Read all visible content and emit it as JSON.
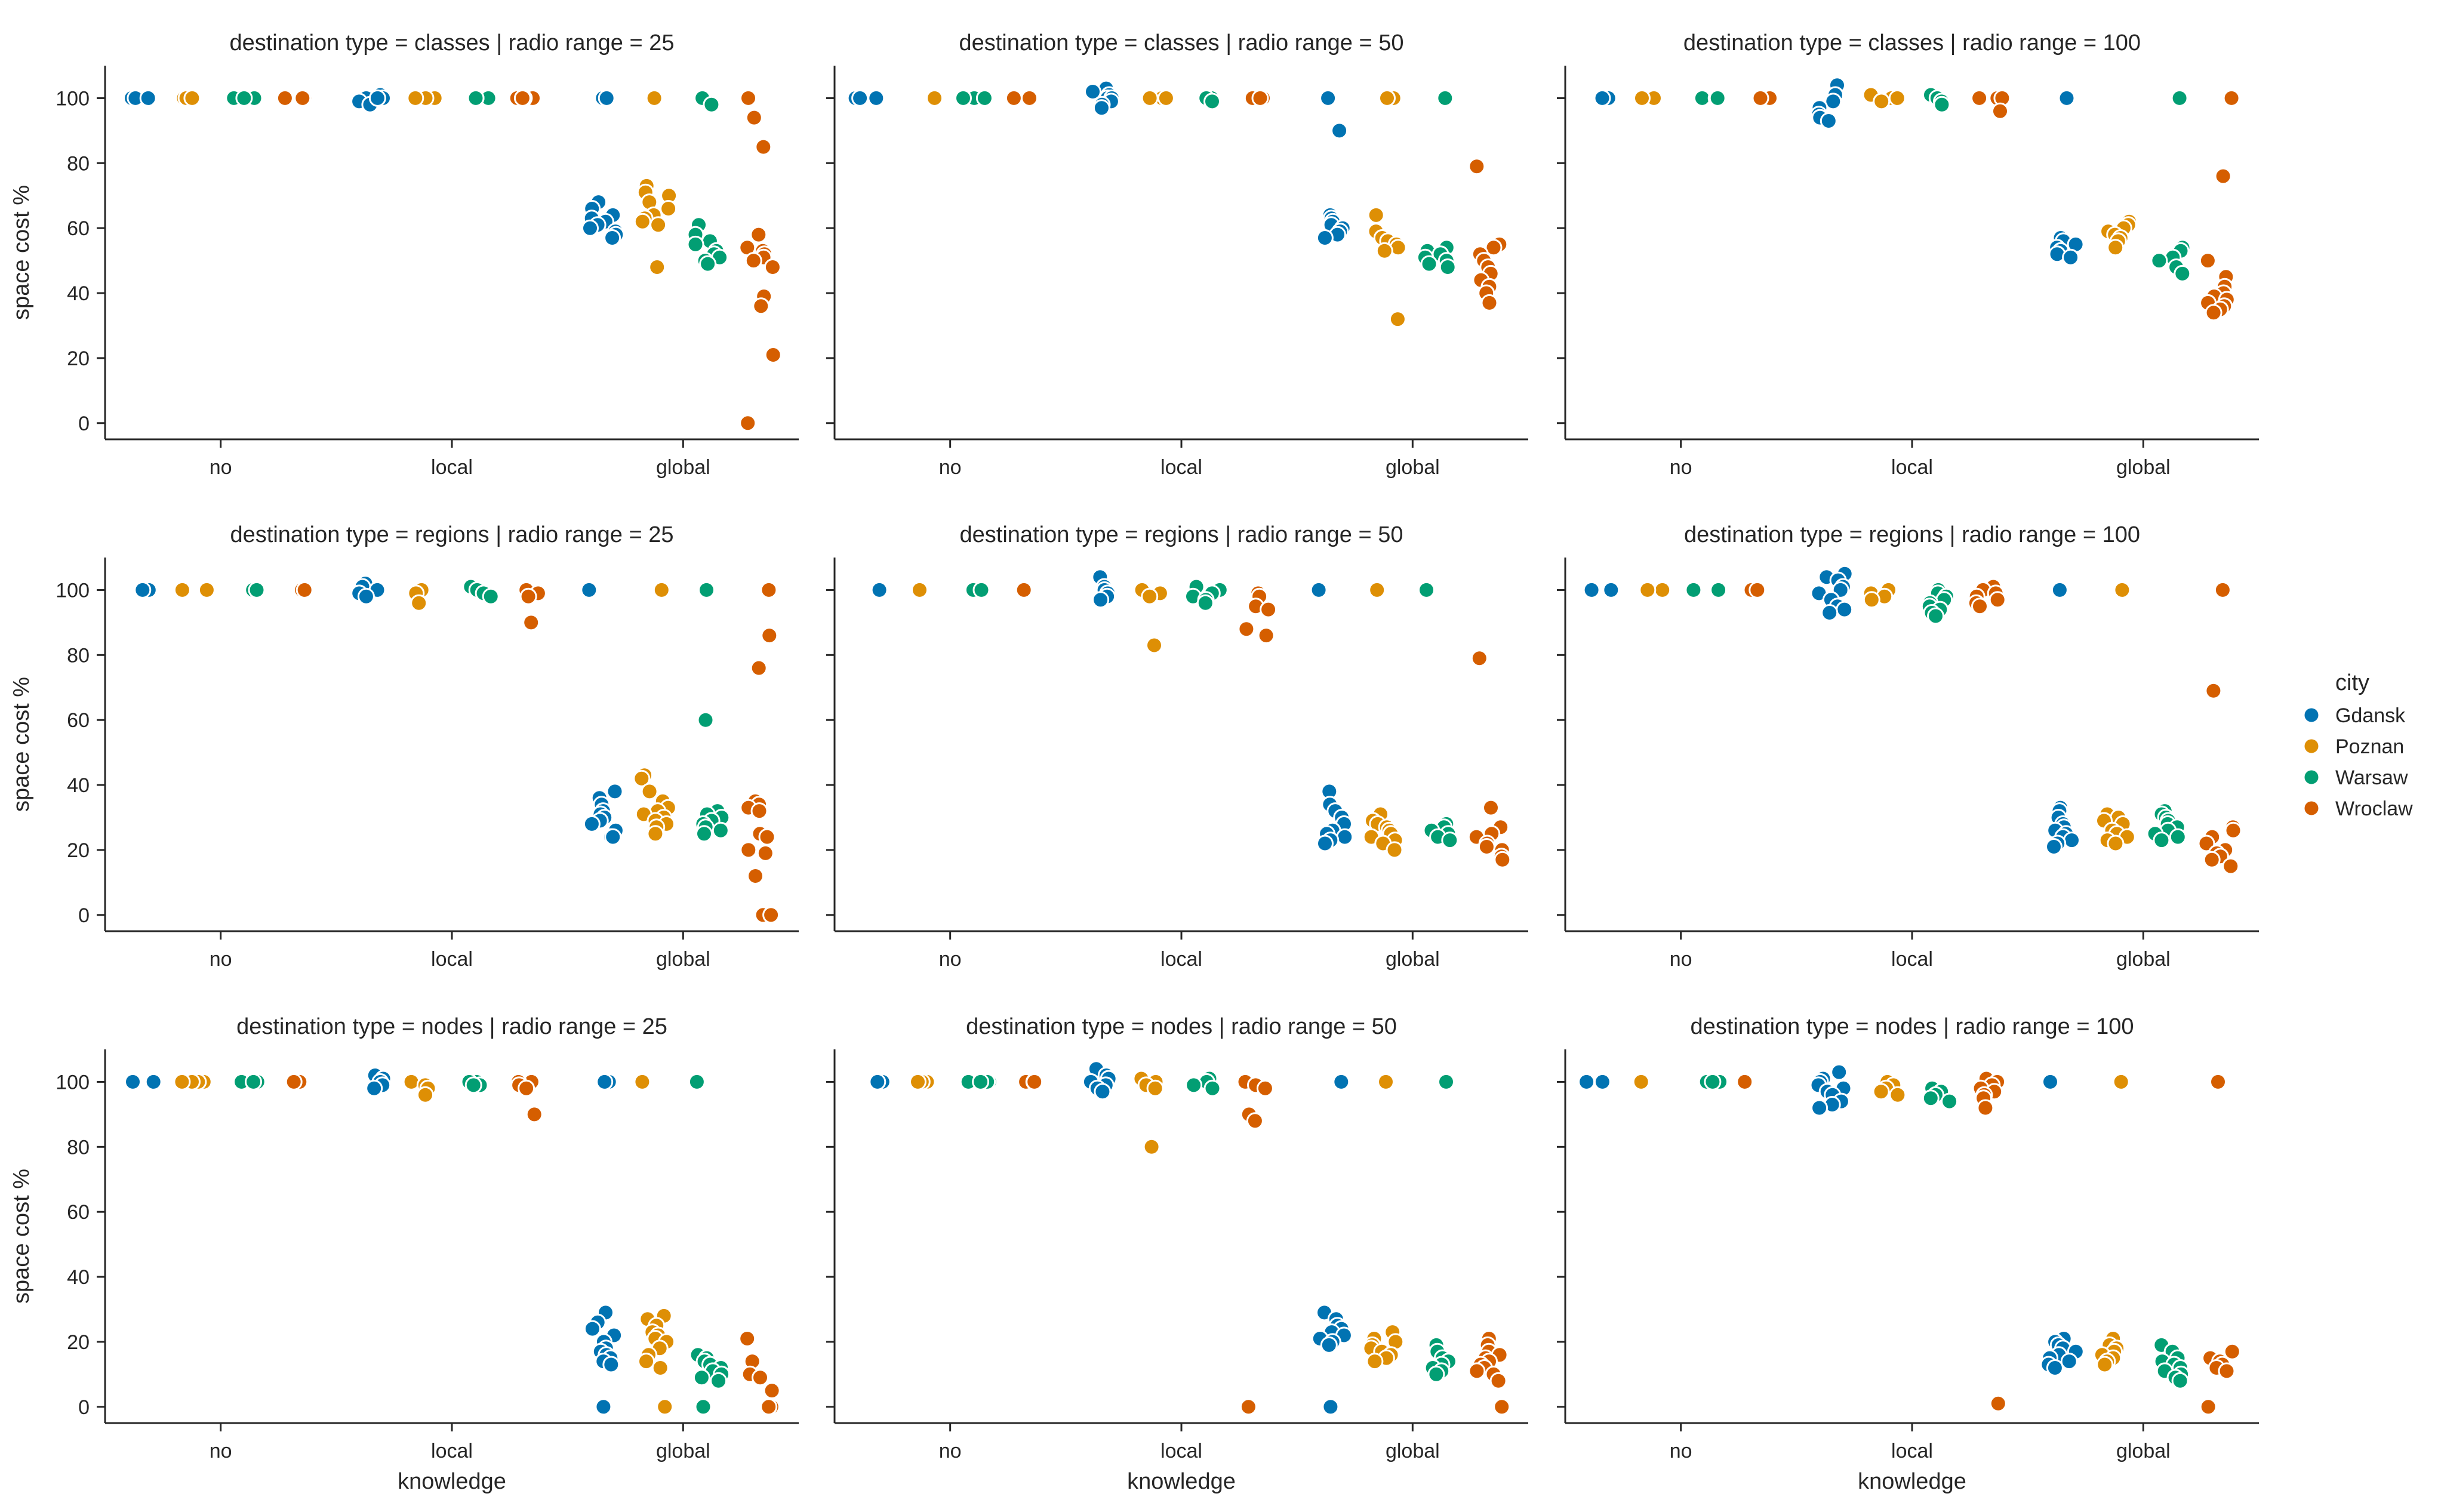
{
  "chart_data": {
    "type": "scatter",
    "variant": "strip-plot-facet-grid",
    "xlabel": "knowledge",
    "ylabel": "space cost %",
    "categories": [
      "no",
      "local",
      "global"
    ],
    "ylim": [
      -5,
      110
    ],
    "yticks": [
      0,
      20,
      40,
      60,
      80,
      100
    ],
    "grid": false,
    "legend": {
      "title": "city",
      "placement": "right",
      "entries": [
        {
          "name": "Gdansk",
          "color": "#0173b2"
        },
        {
          "name": "Poznan",
          "color": "#de8f05"
        },
        {
          "name": "Warsaw",
          "color": "#029e73"
        },
        {
          "name": "Wroclaw",
          "color": "#d55e00"
        }
      ]
    },
    "panels": [
      {
        "title": "destination type = classes | radio range = 25",
        "points": {
          "no": {
            "Gdansk": [
              100,
              100,
              100,
              100,
              100
            ],
            "Poznan": [
              100,
              100,
              100,
              100,
              100
            ],
            "Warsaw": [
              100,
              100,
              100,
              100
            ],
            "Wroclaw": [
              100,
              100,
              100,
              100
            ]
          },
          "local": {
            "Gdansk": [
              101,
              100,
              100,
              99,
              98,
              100
            ],
            "Poznan": [
              100,
              100,
              100,
              100
            ],
            "Warsaw": [
              100,
              100,
              100,
              100
            ],
            "Wroclaw": [
              100,
              100,
              100,
              100
            ]
          },
          "global": {
            "Gdansk": [
              100,
              100,
              100,
              68,
              66,
              64,
              63,
              62,
              61,
              60,
              59,
              58,
              57
            ],
            "Poznan": [
              100,
              100,
              73,
              71,
              70,
              68,
              66,
              64,
              63,
              62,
              61,
              48
            ],
            "Warsaw": [
              100,
              98,
              61,
              58,
              56,
              55,
              53,
              52,
              51,
              50,
              49
            ],
            "Wroclaw": [
              100,
              94,
              85,
              58,
              54,
              53,
              52,
              51,
              50,
              48,
              39,
              36,
              21,
              0
            ]
          }
        }
      },
      {
        "title": "destination type = classes | radio range = 50",
        "points": {
          "no": {
            "Gdansk": [
              100,
              100,
              100
            ],
            "Poznan": [
              100
            ],
            "Warsaw": [
              100,
              100,
              100
            ],
            "Wroclaw": [
              100,
              100,
              100
            ]
          },
          "local": {
            "Gdansk": [
              103,
              102,
              101,
              100,
              100,
              99,
              98,
              97
            ],
            "Poznan": [
              100,
              100,
              100
            ],
            "Warsaw": [
              100,
              100,
              99
            ],
            "Wroclaw": [
              100,
              100,
              100,
              100
            ]
          },
          "global": {
            "Gdansk": [
              100,
              90,
              64,
              63,
              62,
              61,
              60,
              59,
              58,
              57
            ],
            "Poznan": [
              100,
              100,
              64,
              59,
              57,
              56,
              55,
              54,
              53,
              32
            ],
            "Warsaw": [
              100,
              54,
              53,
              52,
              51,
              50,
              49,
              48
            ],
            "Wroclaw": [
              79,
              55,
              54,
              52,
              50,
              48,
              46,
              44,
              42,
              40,
              37
            ]
          }
        }
      },
      {
        "title": "destination type = classes | radio range = 100",
        "points": {
          "no": {
            "Gdansk": [
              100,
              100,
              100
            ],
            "Poznan": [
              100,
              100
            ],
            "Warsaw": [
              100,
              100,
              100
            ],
            "Wroclaw": [
              100,
              100
            ]
          },
          "local": {
            "Gdansk": [
              104,
              101,
              99,
              97,
              95,
              94,
              93
            ],
            "Poznan": [
              101,
              100,
              100,
              99
            ],
            "Warsaw": [
              101,
              100,
              99,
              98
            ],
            "Wroclaw": [
              100,
              100,
              100,
              96
            ]
          },
          "global": {
            "Gdansk": [
              100,
              57,
              56,
              55,
              54,
              53,
              52,
              51
            ],
            "Poznan": [
              62,
              61,
              60,
              59,
              58,
              57,
              56,
              54
            ],
            "Warsaw": [
              100,
              54,
              53,
              51,
              50,
              48,
              46
            ],
            "Wroclaw": [
              100,
              76,
              50,
              45,
              42,
              40,
              39,
              38,
              37,
              36,
              35,
              34
            ]
          }
        }
      },
      {
        "title": "destination type = regions | radio range = 25",
        "points": {
          "no": {
            "Gdansk": [
              100,
              100
            ],
            "Poznan": [
              100,
              100
            ],
            "Warsaw": [
              100,
              100
            ],
            "Wroclaw": [
              100,
              100
            ]
          },
          "local": {
            "Gdansk": [
              102,
              101,
              100,
              99,
              98
            ],
            "Poznan": [
              100,
              99,
              96
            ],
            "Warsaw": [
              101,
              100,
              99,
              98
            ],
            "Wroclaw": [
              100,
              99,
              98,
              90
            ]
          },
          "global": {
            "Gdansk": [
              100,
              100,
              38,
              36,
              34,
              32,
              31,
              30,
              29,
              28,
              26,
              24,
              24
            ],
            "Poznan": [
              100,
              43,
              42,
              38,
              35,
              33,
              32,
              31,
              30,
              29,
              28,
              27,
              25
            ],
            "Warsaw": [
              100,
              60,
              32,
              31,
              30,
              29,
              28,
              27,
              26,
              25
            ],
            "Wroclaw": [
              100,
              86,
              76,
              35,
              34,
              33,
              32,
              25,
              24,
              20,
              19,
              12,
              0,
              0
            ]
          }
        }
      },
      {
        "title": "destination type = regions | radio range = 50",
        "points": {
          "no": {
            "Gdansk": [
              100
            ],
            "Poznan": [
              100
            ],
            "Warsaw": [
              100,
              100
            ],
            "Wroclaw": [
              100,
              100
            ]
          },
          "local": {
            "Gdansk": [
              104,
              101,
              100,
              99,
              98,
              97
            ],
            "Poznan": [
              100,
              99,
              98,
              83
            ],
            "Warsaw": [
              101,
              100,
              99,
              98,
              97,
              96
            ],
            "Wroclaw": [
              99,
              98,
              95,
              94,
              88,
              86
            ]
          },
          "global": {
            "Gdansk": [
              100,
              38,
              34,
              32,
              30,
              28,
              26,
              25,
              24,
              23,
              22
            ],
            "Poznan": [
              100,
              31,
              29,
              28,
              27,
              26,
              25,
              24,
              23,
              22,
              20
            ],
            "Warsaw": [
              100,
              28,
              27,
              26,
              25,
              24,
              23
            ],
            "Wroclaw": [
              79,
              33,
              27,
              25,
              24,
              22,
              21,
              20,
              18,
              17
            ]
          }
        }
      },
      {
        "title": "destination type = regions | radio range = 100",
        "points": {
          "no": {
            "Gdansk": [
              100,
              100
            ],
            "Poznan": [
              100,
              100
            ],
            "Warsaw": [
              100,
              100
            ],
            "Wroclaw": [
              100,
              100
            ]
          },
          "local": {
            "Gdansk": [
              105,
              104,
              103,
              101,
              100,
              99,
              97,
              95,
              94,
              93
            ],
            "Poznan": [
              100,
              99,
              98,
              97
            ],
            "Warsaw": [
              100,
              99,
              98,
              97,
              96,
              95,
              94,
              93,
              92
            ],
            "Wroclaw": [
              101,
              100,
              99,
              98,
              97,
              96,
              95
            ]
          },
          "global": {
            "Gdansk": [
              100,
              33,
              32,
              30,
              28,
              27,
              26,
              25,
              24,
              23,
              22,
              21
            ],
            "Poznan": [
              100,
              31,
              30,
              29,
              28,
              26,
              25,
              24,
              23,
              22
            ],
            "Warsaw": [
              32,
              31,
              30,
              29,
              28,
              27,
              26,
              25,
              24,
              23
            ],
            "Wroclaw": [
              100,
              69,
              27,
              26,
              24,
              22,
              20,
              19,
              18,
              17,
              15
            ]
          }
        }
      },
      {
        "title": "destination type = nodes | radio range = 25",
        "points": {
          "no": {
            "Gdansk": [
              100,
              100,
              100
            ],
            "Poznan": [
              100,
              100,
              100,
              100
            ],
            "Warsaw": [
              100,
              100,
              100,
              100
            ],
            "Wroclaw": [
              100,
              100,
              100
            ]
          },
          "local": {
            "Gdansk": [
              102,
              101,
              100,
              99,
              98
            ],
            "Poznan": [
              100,
              99,
              98,
              96
            ],
            "Warsaw": [
              100,
              100,
              99,
              99
            ],
            "Wroclaw": [
              100,
              100,
              99,
              98,
              90
            ]
          },
          "global": {
            "Gdansk": [
              100,
              100,
              29,
              26,
              24,
              22,
              20,
              18,
              17,
              16,
              15,
              14,
              13,
              0
            ],
            "Poznan": [
              100,
              28,
              27,
              25,
              23,
              22,
              21,
              20,
              18,
              16,
              14,
              12,
              0
            ],
            "Warsaw": [
              100,
              16,
              15,
              14,
              13,
              12,
              11,
              10,
              9,
              8,
              0
            ],
            "Wroclaw": [
              21,
              14,
              10,
              9,
              5,
              0,
              0
            ]
          }
        }
      },
      {
        "title": "destination type = nodes | radio range = 50",
        "points": {
          "no": {
            "Gdansk": [
              100,
              100
            ],
            "Poznan": [
              100,
              100,
              100
            ],
            "Warsaw": [
              100,
              100,
              100,
              100
            ],
            "Wroclaw": [
              100,
              100,
              100
            ]
          },
          "local": {
            "Gdansk": [
              104,
              102,
              101,
              100,
              99,
              98,
              97
            ],
            "Poznan": [
              101,
              100,
              99,
              98,
              80
            ],
            "Warsaw": [
              101,
              100,
              100,
              99,
              98
            ],
            "Wroclaw": [
              100,
              99,
              98,
              90,
              88,
              0
            ]
          },
          "global": {
            "Gdansk": [
              100,
              29,
              27,
              25,
              24,
              23,
              22,
              21,
              20,
              19,
              0
            ],
            "Poznan": [
              100,
              23,
              21,
              20,
              19,
              18,
              17,
              16,
              15,
              14
            ],
            "Warsaw": [
              100,
              19,
              17,
              15,
              14,
              13,
              12,
              11,
              10
            ],
            "Wroclaw": [
              21,
              19,
              17,
              16,
              15,
              14,
              13,
              12,
              11,
              10,
              8,
              0
            ]
          }
        }
      },
      {
        "title": "destination type = nodes | radio range = 100",
        "points": {
          "no": {
            "Gdansk": [
              100,
              100
            ],
            "Poznan": [
              100,
              100
            ],
            "Warsaw": [
              100,
              100,
              100
            ],
            "Wroclaw": [
              100,
              100,
              100
            ]
          },
          "local": {
            "Gdansk": [
              103,
              101,
              100,
              99,
              98,
              97,
              96,
              94,
              93,
              92
            ],
            "Poznan": [
              100,
              99,
              98,
              97,
              96
            ],
            "Warsaw": [
              98,
              97,
              96,
              95,
              94
            ],
            "Wroclaw": [
              101,
              100,
              99,
              98,
              97,
              96,
              95,
              92,
              1
            ]
          },
          "global": {
            "Gdansk": [
              100,
              21,
              20,
              19,
              18,
              17,
              16,
              15,
              14,
              13,
              12
            ],
            "Poznan": [
              100,
              21,
              19,
              18,
              17,
              16,
              15,
              14,
              13
            ],
            "Warsaw": [
              19,
              17,
              15,
              14,
              13,
              12,
              11,
              10,
              9,
              8
            ],
            "Wroclaw": [
              100,
              17,
              15,
              14,
              13,
              12,
              11,
              0
            ]
          }
        }
      }
    ]
  }
}
